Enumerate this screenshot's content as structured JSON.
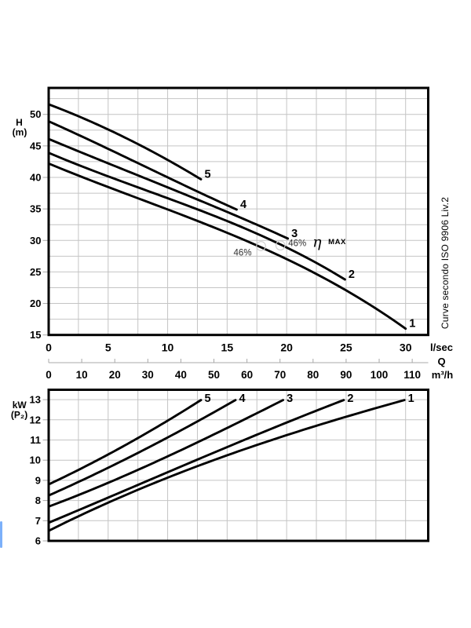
{
  "page": {
    "background": "#ffffff"
  },
  "side_note": "Curve secondo ISO 9906 Liv.2",
  "scroll_marker": {
    "color": "#7cb0fa"
  },
  "colors": {
    "curve": "#000000",
    "frame": "#000000",
    "grid": "#c4c4c4",
    "axis_tick": "#a8a8a8",
    "secondary_axis": "#a8a8a8",
    "text": "#000000",
    "annotation": "#303030",
    "marker_circle": "#cfcfcf"
  },
  "chart_data": [
    {
      "type": "line",
      "name": "head-flow-chart",
      "ylabel": "H",
      "ylabel_unit": "(m)",
      "xlabel": "Q",
      "x_unit": "l/sec",
      "xlim": [
        0,
        31.9
      ],
      "ylim": [
        15,
        54.2
      ],
      "x_ticks": [
        0,
        5,
        10,
        15,
        20,
        25,
        30
      ],
      "y_ticks": [
        15,
        20,
        25,
        30,
        35,
        40,
        45,
        50
      ],
      "x_grid_step": 2.5,
      "y_grid_step": 2.5,
      "grid": true,
      "secondary_x": {
        "unit": "m³/h",
        "factor": 3.6,
        "ticks": [
          0,
          10,
          20,
          30,
          40,
          50,
          60,
          70,
          80,
          90,
          100,
          110
        ]
      },
      "series": [
        {
          "name": "1",
          "points": [
            [
              0,
              42.2
            ],
            [
              7.8,
              36.5
            ],
            [
              15.7,
              30.6
            ],
            [
              22.3,
              25.0
            ],
            [
              26.3,
              20.5
            ],
            [
              30.0,
              16.0
            ]
          ]
        },
        {
          "name": "2",
          "points": [
            [
              0,
              43.9
            ],
            [
              7.8,
              38.3
            ],
            [
              14.4,
              33.4
            ],
            [
              22.3,
              26.8
            ],
            [
              24.9,
              23.8
            ]
          ]
        },
        {
          "name": "3",
          "points": [
            [
              0,
              46.1
            ],
            [
              7.8,
              40.1
            ],
            [
              14.4,
              35.0
            ],
            [
              20.1,
              30.3
            ]
          ]
        },
        {
          "name": "4",
          "points": [
            [
              0,
              48.9
            ],
            [
              7.8,
              42.0
            ],
            [
              14.4,
              36.1
            ],
            [
              15.8,
              34.9
            ]
          ]
        },
        {
          "name": "5",
          "points": [
            [
              0,
              51.6
            ],
            [
              7.8,
              45.0
            ],
            [
              12.8,
              39.7
            ]
          ]
        }
      ],
      "efficiency_markers": [
        {
          "q": 17.85,
          "h": 29.1
        },
        {
          "q": 19.48,
          "h": 29.2
        }
      ],
      "annotations": [
        {
          "text": "46%",
          "q": 16.3,
          "h": 28.0,
          "style": "eff"
        },
        {
          "text": "46%",
          "q": 20.9,
          "h": 29.5,
          "style": "eff"
        },
        {
          "text": "η",
          "q": 22.55,
          "h": 29.7,
          "style": "eta"
        },
        {
          "text": "MAX",
          "q": 24.25,
          "h": 29.75,
          "style": "max"
        }
      ]
    },
    {
      "type": "line",
      "name": "power-flow-chart",
      "ylabel": "kW",
      "ylabel_unit": "(P₂)",
      "xlabel": "",
      "x_unit": "",
      "xlim": [
        0,
        31.9
      ],
      "ylim": [
        6,
        13.49
      ],
      "x_ticks": [],
      "y_ticks": [
        6,
        7,
        8,
        9,
        10,
        11,
        12,
        13
      ],
      "x_grid_step": 2.5,
      "y_grid_step": 1,
      "grid": true,
      "series": [
        {
          "name": "1",
          "points": [
            [
              0,
              6.5
            ],
            [
              10.4,
              9.2
            ],
            [
              16.0,
              10.5
            ],
            [
              21.0,
              11.4
            ],
            [
              23.6,
              11.9
            ],
            [
              29.9,
              12.98
            ]
          ]
        },
        {
          "name": "2",
          "points": [
            [
              0,
              6.9
            ],
            [
              10.4,
              9.5
            ],
            [
              16.0,
              10.9
            ],
            [
              21.0,
              12.1
            ],
            [
              23.6,
              12.7
            ],
            [
              24.8,
              12.98
            ]
          ]
        },
        {
          "name": "3",
          "points": [
            [
              0,
              7.7
            ],
            [
              7.8,
              9.56
            ],
            [
              10.4,
              10.35
            ],
            [
              16.0,
              11.86
            ],
            [
              19.7,
              12.98
            ]
          ]
        },
        {
          "name": "4",
          "points": [
            [
              0,
              8.25
            ],
            [
              7.8,
              10.43
            ],
            [
              10.4,
              11.3
            ],
            [
              12.4,
              11.85
            ],
            [
              15.7,
              12.98
            ]
          ]
        },
        {
          "name": "5",
          "points": [
            [
              0,
              8.8
            ],
            [
              10.4,
              12.1
            ],
            [
              12.8,
              12.98
            ]
          ]
        }
      ]
    }
  ]
}
